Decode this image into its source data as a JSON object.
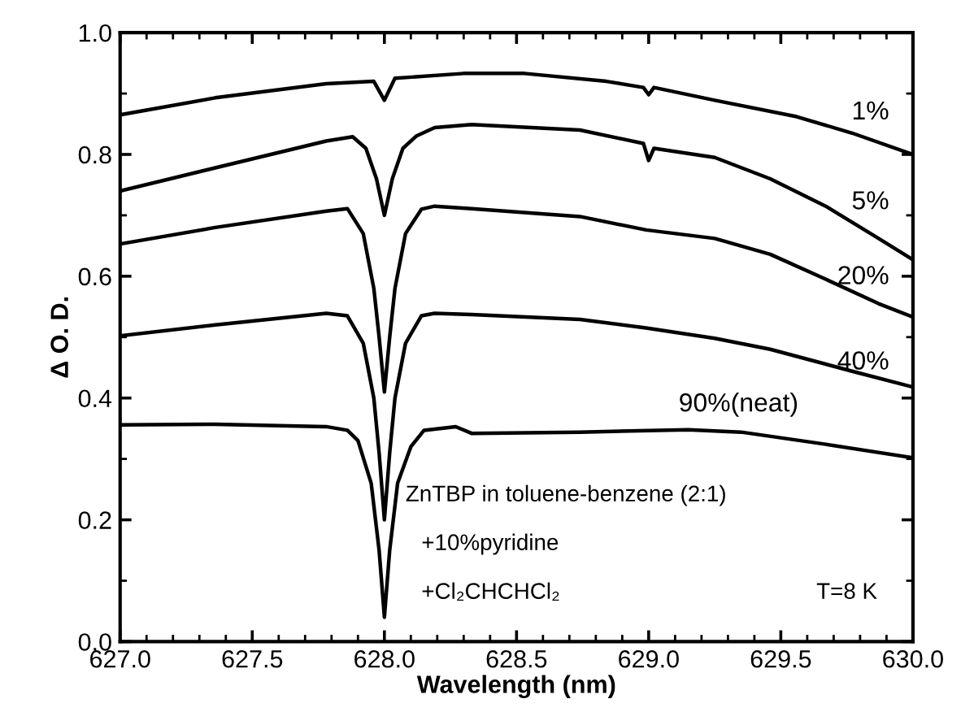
{
  "chart_data": {
    "type": "line",
    "xlabel": "Wavelength (nm)",
    "ylabel": "Δ O. D.",
    "xlim": [
      627.0,
      630.0
    ],
    "ylim": [
      0.0,
      1.0
    ],
    "xticks": [
      {
        "value": 627.0,
        "label": "627.0"
      },
      {
        "value": 627.5,
        "label": "627.5"
      },
      {
        "value": 628.0,
        "label": "628.0"
      },
      {
        "value": 628.5,
        "label": "628.5"
      },
      {
        "value": 629.0,
        "label": "629.0"
      },
      {
        "value": 629.5,
        "label": "629.5"
      },
      {
        "value": 630.0,
        "label": "630.0"
      }
    ],
    "yticks": [
      {
        "value": 0.0,
        "label": "0.0"
      },
      {
        "value": 0.2,
        "label": "0.2"
      },
      {
        "value": 0.4,
        "label": "0.4"
      },
      {
        "value": 0.6,
        "label": "0.6"
      },
      {
        "value": 0.8,
        "label": "0.8"
      },
      {
        "value": 1.0,
        "label": "1.0"
      }
    ],
    "grid": false,
    "legend": "right",
    "marker": "none",
    "line_style": "solid",
    "series": [
      {
        "name": "1%",
        "color": "#000000",
        "x": [
          627.0,
          627.36,
          627.78,
          627.96,
          628.0,
          628.04,
          628.3,
          628.53,
          628.84,
          628.98,
          629.0,
          629.02,
          629.25,
          629.56,
          629.77,
          630.0
        ],
        "values": [
          0.865,
          0.893,
          0.916,
          0.92,
          0.889,
          0.925,
          0.933,
          0.933,
          0.92,
          0.91,
          0.898,
          0.91,
          0.889,
          0.862,
          0.835,
          0.8
        ]
      },
      {
        "name": "5%",
        "color": "#000000",
        "x": [
          627.0,
          627.36,
          627.78,
          627.88,
          627.93,
          627.97,
          628.0,
          628.03,
          628.07,
          628.12,
          628.19,
          628.33,
          628.74,
          628.98,
          629.0,
          629.02,
          629.25,
          629.46,
          629.67,
          629.87,
          630.0
        ],
        "values": [
          0.74,
          0.778,
          0.822,
          0.829,
          0.81,
          0.76,
          0.7,
          0.76,
          0.81,
          0.83,
          0.844,
          0.849,
          0.84,
          0.818,
          0.79,
          0.81,
          0.795,
          0.76,
          0.715,
          0.662,
          0.627
        ]
      },
      {
        "name": "20%",
        "color": "#000000",
        "x": [
          627.0,
          627.36,
          627.78,
          627.86,
          627.92,
          627.96,
          627.98,
          628.0,
          628.02,
          628.04,
          628.08,
          628.14,
          628.19,
          628.33,
          628.74,
          628.99,
          629.25,
          629.46,
          629.67,
          629.87,
          630.0
        ],
        "values": [
          0.653,
          0.68,
          0.707,
          0.711,
          0.67,
          0.58,
          0.5,
          0.41,
          0.5,
          0.58,
          0.67,
          0.71,
          0.715,
          0.711,
          0.698,
          0.676,
          0.662,
          0.636,
          0.595,
          0.555,
          0.533
        ]
      },
      {
        "name": "40%",
        "color": "#000000",
        "x": [
          627.0,
          627.36,
          627.78,
          627.86,
          627.92,
          627.96,
          627.98,
          628.0,
          628.02,
          628.04,
          628.08,
          628.14,
          628.19,
          628.33,
          628.74,
          628.99,
          629.25,
          629.46,
          629.77,
          630.0
        ],
        "values": [
          0.502,
          0.52,
          0.539,
          0.535,
          0.49,
          0.4,
          0.31,
          0.2,
          0.31,
          0.4,
          0.49,
          0.535,
          0.539,
          0.537,
          0.529,
          0.515,
          0.498,
          0.48,
          0.444,
          0.418
        ]
      },
      {
        "name": "90%(neat)",
        "color": "#000000",
        "x": [
          627.0,
          627.36,
          627.78,
          627.86,
          627.9,
          627.95,
          627.98,
          628.0,
          628.02,
          628.05,
          628.1,
          628.15,
          628.27,
          628.33,
          628.74,
          629.15,
          629.35,
          629.67,
          630.0
        ],
        "values": [
          0.356,
          0.357,
          0.353,
          0.347,
          0.33,
          0.26,
          0.15,
          0.04,
          0.15,
          0.26,
          0.32,
          0.347,
          0.353,
          0.342,
          0.344,
          0.348,
          0.344,
          0.324,
          0.302
        ]
      }
    ],
    "annotations": [
      "ZnTBP in toluene-benzene (2:1)",
      "+10%pyridine",
      "+Cl₂CHCHCl₂",
      "T=8 K"
    ]
  }
}
